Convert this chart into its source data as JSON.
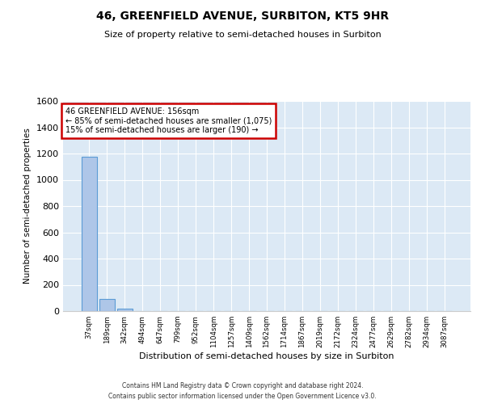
{
  "title": "46, GREENFIELD AVENUE, SURBITON, KT5 9HR",
  "subtitle": "Size of property relative to semi-detached houses in Surbiton",
  "xlabel": "Distribution of semi-detached houses by size in Surbiton",
  "ylabel": "Number of semi-detached properties",
  "annotation_line1": "46 GREENFIELD AVENUE: 156sqm",
  "annotation_line2": "← 85% of semi-detached houses are smaller (1,075)",
  "annotation_line3": "15% of semi-detached houses are larger (190) →",
  "bin_labels": [
    "37sqm",
    "189sqm",
    "342sqm",
    "494sqm",
    "647sqm",
    "799sqm",
    "952sqm",
    "1104sqm",
    "1257sqm",
    "1409sqm",
    "1562sqm",
    "1714sqm",
    "1867sqm",
    "2019sqm",
    "2172sqm",
    "2324sqm",
    "2477sqm",
    "2629sqm",
    "2782sqm",
    "2934sqm",
    "3087sqm"
  ],
  "bar_heights": [
    1175,
    90,
    20,
    0,
    0,
    0,
    0,
    0,
    0,
    0,
    0,
    0,
    0,
    0,
    0,
    0,
    0,
    0,
    0,
    0,
    0
  ],
  "bar_color": "#aec6e8",
  "bar_edge_color": "#5b9bd5",
  "ylim": [
    0,
    1600
  ],
  "yticks": [
    0,
    200,
    400,
    600,
    800,
    1000,
    1200,
    1400,
    1600
  ],
  "background_color": "#dce9f5",
  "grid_color": "#ffffff",
  "annotation_box_color": "#cc0000",
  "footer_line1": "Contains HM Land Registry data © Crown copyright and database right 2024.",
  "footer_line2": "Contains public sector information licensed under the Open Government Licence v3.0."
}
